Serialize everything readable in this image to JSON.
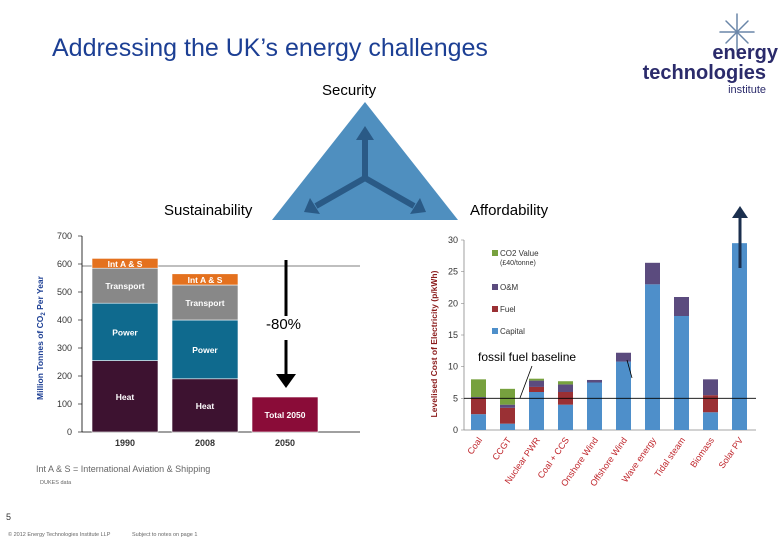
{
  "slide": {
    "title": "Addressing the UK’s energy challenges",
    "page_number": "5",
    "copyright": "© 2012 Energy Technologies Institute LLP",
    "notes": "Subject to notes on page 1",
    "source_note": "DUKES data",
    "footnote": "Int A & S = International Aviation & Shipping"
  },
  "logo": {
    "line1": "energy",
    "line2": "technologies",
    "line3": "institute"
  },
  "triangle": {
    "top": "Security",
    "left": "Sustainability",
    "right": "Affordability",
    "fill": "#4f8fbf",
    "arrow_color": "#2a5a86"
  },
  "annotations": {
    "reduction": "-80%",
    "baseline": "fossil fuel baseline"
  },
  "chart_data": [
    {
      "type": "bar",
      "stacked": true,
      "ylabel_parts": [
        "Million Tonnes of CO",
        "2",
        " Per Year"
      ],
      "ylim": [
        0,
        700
      ],
      "yticks": [
        "0",
        "100",
        "200",
        "300",
        "400",
        "500",
        "600",
        "700"
      ],
      "categories": [
        "1990",
        "2008",
        "2050"
      ],
      "series": [
        {
          "name": "Heat",
          "color": "#3d1230",
          "values": [
            255,
            190,
            0
          ]
        },
        {
          "name": "Power",
          "color": "#0f6a8e",
          "values": [
            205,
            210,
            0
          ]
        },
        {
          "name": "Transport",
          "color": "#888888",
          "values": [
            125,
            125,
            0
          ]
        },
        {
          "name": "Int A & S",
          "color": "#e4711e",
          "values": [
            35,
            40,
            0
          ]
        },
        {
          "name": "Total 2050",
          "color": "#8a0c38",
          "values": [
            0,
            0,
            125
          ]
        }
      ],
      "segment_labels": {
        "1990": [
          "Heat",
          "Power",
          "Transport",
          "Int A & S"
        ],
        "2008": [
          "Heat",
          "Power",
          "Transport",
          "Int A & S"
        ],
        "2050": [
          "Total 2050"
        ]
      }
    },
    {
      "type": "bar",
      "stacked": true,
      "ylabel": "Levelised Cost of Electricity (p/kWh)",
      "ylim": [
        0,
        30
      ],
      "yticks": [
        "0",
        "5",
        "10",
        "15",
        "20",
        "25",
        "30"
      ],
      "categories": [
        "Coal",
        "CCGT",
        "Nuclear PWR",
        "Coal + CCS",
        "Onshore Wind",
        "Offshore Wind",
        "Wave energy",
        "Tidal steam",
        "Biomass",
        "Solar PV"
      ],
      "series": [
        {
          "name": "Capital",
          "color": "#4e8fca",
          "values": [
            2.5,
            1.0,
            6.0,
            4.0,
            7.5,
            10.8,
            23.0,
            18.0,
            2.8,
            29.5
          ]
        },
        {
          "name": "Fuel",
          "color": "#9a3034",
          "values": [
            2.5,
            2.5,
            0.8,
            2.0,
            0.0,
            0.0,
            0.0,
            0.0,
            2.7,
            0.0
          ]
        },
        {
          "name": "O&M",
          "color": "#5b4b7e",
          "values": [
            0.2,
            0.5,
            1.0,
            1.2,
            0.4,
            1.4,
            3.4,
            3.0,
            2.5,
            0.0
          ]
        },
        {
          "name": "CO2 Value",
          "color": "#77a13e",
          "values": [
            2.8,
            2.5,
            0.3,
            0.5,
            0.0,
            0.0,
            0.0,
            0.0,
            0.0,
            0.0
          ]
        }
      ],
      "legend": [
        {
          "name": "CO2 Value",
          "sub": "(£40/tonne)",
          "color": "#77a13e"
        },
        {
          "name": "O&M",
          "sub": "",
          "color": "#5b4b7e"
        },
        {
          "name": "Fuel",
          "sub": "",
          "color": "#9a3034"
        },
        {
          "name": "Capital",
          "sub": "",
          "color": "#4e8fca"
        }
      ],
      "baseline_value": 5
    }
  ]
}
